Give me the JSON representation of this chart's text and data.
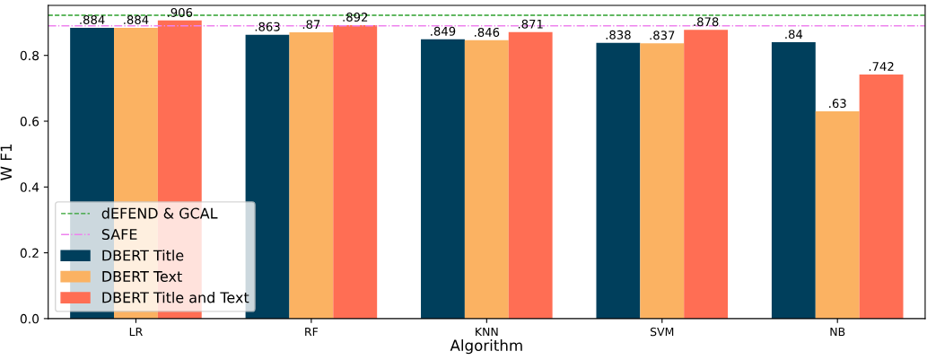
{
  "chart_data": {
    "type": "bar",
    "xlabel": "Algorithm",
    "ylabel": "W F1",
    "categories": [
      "LR",
      "RF",
      "KNN",
      "SVM",
      "NB"
    ],
    "series": [
      {
        "name": "DBERT Title",
        "color": "#003f5c",
        "values": [
          0.884,
          0.863,
          0.849,
          0.838,
          0.84
        ],
        "value_labels": [
          ".884",
          ".863",
          ".849",
          ".838",
          ".84"
        ]
      },
      {
        "name": "DBERT Text",
        "color": "#fbb262",
        "values": [
          0.884,
          0.87,
          0.846,
          0.837,
          0.63
        ],
        "value_labels": [
          ".884",
          ".87",
          ".846",
          ".837",
          ".63"
        ]
      },
      {
        "name": "DBERT Title and Text",
        "color": "#ff6e54",
        "values": [
          0.906,
          0.892,
          0.871,
          0.878,
          0.742
        ],
        "value_labels": [
          ".906",
          ".892",
          ".871",
          ".878",
          ".742"
        ]
      }
    ],
    "ref_lines": [
      {
        "axis": "y",
        "value": 0.922,
        "label": "dEFEND & GCAL",
        "color": "#2ca02c",
        "line_style": "dashed"
      },
      {
        "axis": "y",
        "value": 0.89,
        "label": "SAFE",
        "color": "#ee82ee",
        "line_style": "dashdot"
      }
    ],
    "ylim": [
      0,
      0.952
    ],
    "yticks": [
      {
        "value": 0,
        "label": "0.0"
      },
      0.2,
      0.4,
      0.6,
      0.8
    ],
    "grid": false,
    "legend": "bottom left"
  }
}
